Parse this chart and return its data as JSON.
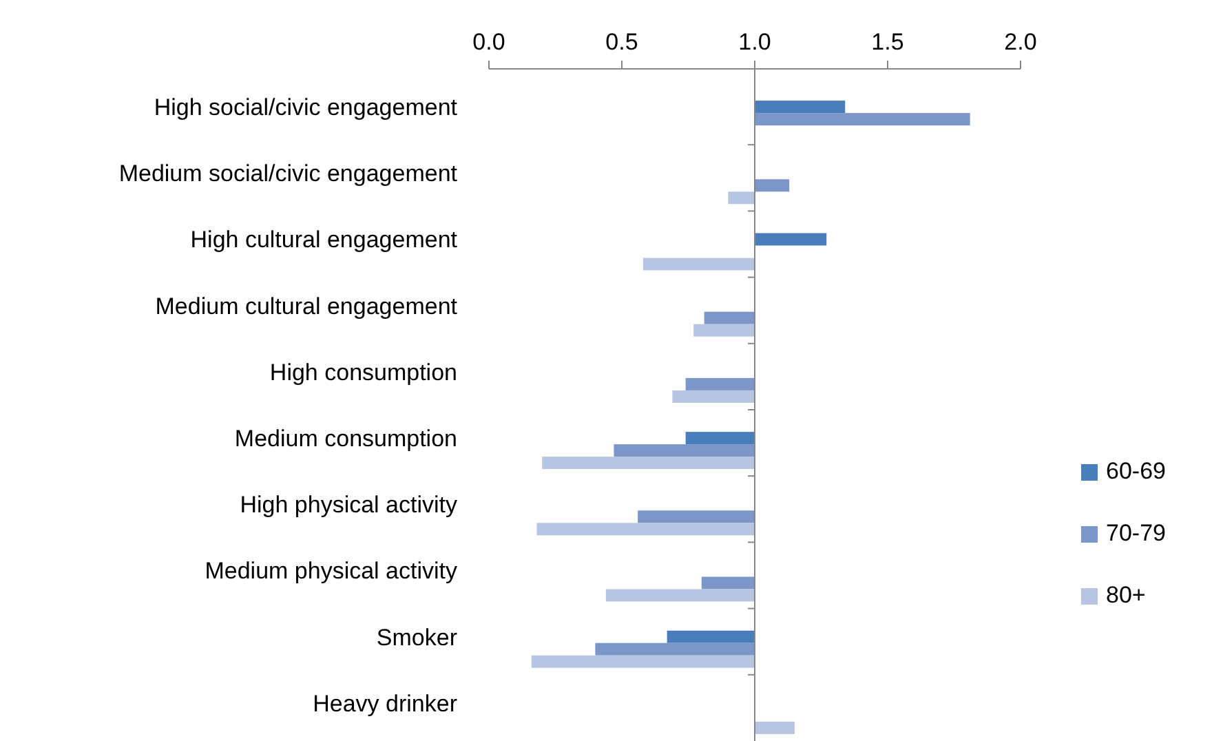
{
  "chart_data": {
    "type": "bar",
    "orientation": "horizontal",
    "categories": [
      "High social/civic engagement",
      "Medium social/civic engagement",
      "High cultural engagement",
      "Medium cultural engagement",
      "High consumption",
      "Medium consumption",
      "High physical activity",
      "Medium physical activity",
      "Smoker",
      "Heavy drinker"
    ],
    "series": [
      {
        "name": "60-69",
        "color": "#4a7ebb",
        "base": [
          1,
          null,
          1,
          null,
          null,
          1,
          null,
          null,
          1,
          null
        ],
        "values": [
          0.34,
          null,
          0.27,
          null,
          null,
          -0.26,
          null,
          null,
          -0.33,
          null
        ]
      },
      {
        "name": "70-79",
        "color": "#7b96c8",
        "base": [
          1,
          1,
          null,
          1,
          1,
          1,
          1,
          1,
          1,
          null
        ],
        "values": [
          0.81,
          0.13,
          null,
          -0.19,
          -0.26,
          -0.53,
          -0.44,
          -0.2,
          -0.6,
          null
        ]
      },
      {
        "name": "80+",
        "color": "#b7c5e2",
        "base": [
          null,
          1,
          1,
          1,
          1,
          1,
          1,
          1,
          1,
          1
        ],
        "values": [
          null,
          -0.1,
          -0.42,
          -0.23,
          -0.31,
          -0.8,
          -0.82,
          -0.56,
          -0.84,
          0.15
        ]
      }
    ],
    "xlim": [
      0,
      2
    ],
    "xticks": [
      {
        "value": 0,
        "label": "0.0"
      },
      {
        "value": 0.5,
        "label": "0.5"
      },
      {
        "value": 1,
        "label": "1.0"
      },
      {
        "value": 1.5,
        "label": "1.5"
      },
      {
        "value": 2,
        "label": "2.0"
      }
    ],
    "ref_lines": [
      {
        "axis": "x",
        "value": 1,
        "color": "#868686"
      }
    ],
    "grid": false,
    "legend": "right"
  }
}
